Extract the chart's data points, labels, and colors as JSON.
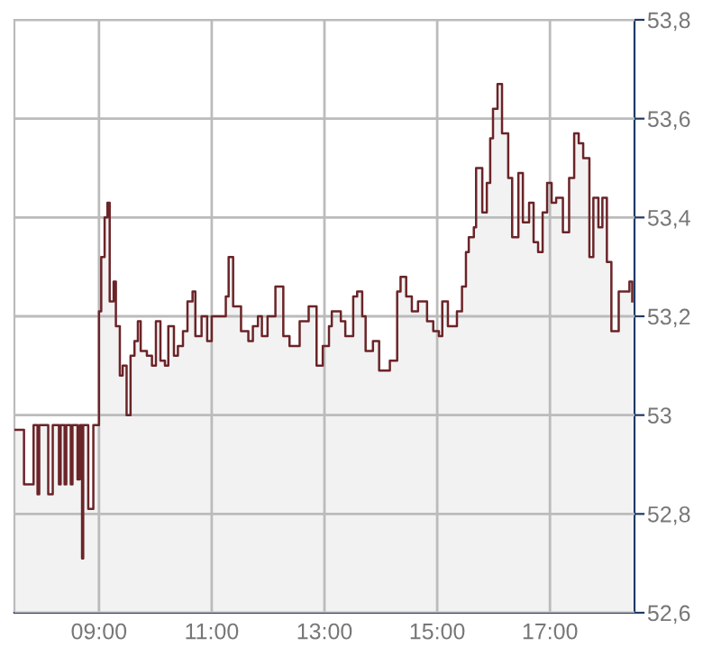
{
  "chart_data": {
    "type": "step",
    "x": [
      7.5,
      7.67,
      7.84,
      7.91,
      7.94,
      7.98,
      8.1,
      8.18,
      8.29,
      8.32,
      8.39,
      8.42,
      8.5,
      8.53,
      8.62,
      8.66,
      8.7,
      8.72,
      8.81,
      8.9,
      9.0,
      9.04,
      9.1,
      9.15,
      9.19,
      9.26,
      9.3,
      9.37,
      9.42,
      9.49,
      9.56,
      9.63,
      9.69,
      9.74,
      9.85,
      9.94,
      10.01,
      10.09,
      10.17,
      10.23,
      10.33,
      10.4,
      10.49,
      10.57,
      10.66,
      10.71,
      10.82,
      10.92,
      11.0,
      11.14,
      11.25,
      11.3,
      11.38,
      11.52,
      11.65,
      11.73,
      11.82,
      11.89,
      11.99,
      12.13,
      12.27,
      12.38,
      12.56,
      12.72,
      12.86,
      12.97,
      13.08,
      13.13,
      13.29,
      13.37,
      13.51,
      13.58,
      13.67,
      13.73,
      13.86,
      13.97,
      14.16,
      14.29,
      14.35,
      14.45,
      14.55,
      14.66,
      14.82,
      14.93,
      15.03,
      15.09,
      15.19,
      15.35,
      15.44,
      15.51,
      15.56,
      15.65,
      15.69,
      15.8,
      15.88,
      15.94,
      15.99,
      16.07,
      16.15,
      16.26,
      16.33,
      16.44,
      16.52,
      16.63,
      16.71,
      16.79,
      16.87,
      16.95,
      17.03,
      17.11,
      17.23,
      17.34,
      17.43,
      17.51,
      17.59,
      17.7,
      17.77,
      17.86,
      17.93,
      18.01,
      18.09,
      18.22,
      18.41,
      18.46
    ],
    "series": [
      {
        "type": "area",
        "color": "#f2f2f2",
        "values": [
          52.97,
          52.86,
          52.98,
          52.84,
          52.98,
          52.98,
          52.84,
          52.98,
          52.86,
          52.98,
          52.86,
          52.98,
          52.86,
          52.98,
          52.87,
          52.98,
          52.71,
          52.98,
          52.81,
          52.98,
          53.21,
          53.32,
          53.4,
          53.43,
          53.23,
          53.27,
          53.18,
          53.08,
          53.1,
          53.0,
          53.12,
          53.15,
          53.19,
          53.13,
          53.12,
          53.1,
          53.19,
          53.11,
          53.1,
          53.18,
          53.12,
          53.14,
          53.17,
          53.23,
          53.25,
          53.16,
          53.2,
          53.15,
          53.2,
          53.2,
          53.24,
          53.32,
          53.22,
          53.17,
          53.15,
          53.18,
          53.2,
          53.16,
          53.2,
          53.26,
          53.16,
          53.14,
          53.19,
          53.22,
          53.1,
          53.14,
          53.18,
          53.21,
          53.19,
          53.16,
          53.24,
          53.25,
          53.2,
          53.13,
          53.15,
          53.09,
          53.11,
          53.25,
          53.28,
          53.24,
          53.21,
          53.23,
          53.19,
          53.17,
          53.16,
          53.23,
          53.18,
          53.21,
          53.26,
          53.33,
          53.36,
          53.38,
          53.5,
          53.41,
          53.47,
          53.56,
          53.62,
          53.67,
          53.57,
          53.48,
          53.36,
          53.49,
          53.39,
          53.43,
          53.35,
          53.33,
          53.41,
          53.47,
          53.43,
          53.44,
          53.37,
          53.48,
          53.57,
          53.55,
          53.52,
          53.32,
          53.44,
          53.38,
          53.44,
          53.31,
          53.17,
          53.25,
          53.27,
          53.23
        ]
      },
      {
        "color": "#6b2428",
        "values": [
          52.97,
          52.86,
          52.98,
          52.84,
          52.98,
          52.98,
          52.84,
          52.98,
          52.86,
          52.98,
          52.86,
          52.98,
          52.86,
          52.98,
          52.87,
          52.98,
          52.71,
          52.98,
          52.81,
          52.98,
          53.21,
          53.32,
          53.4,
          53.43,
          53.23,
          53.27,
          53.18,
          53.08,
          53.1,
          53.0,
          53.12,
          53.15,
          53.19,
          53.13,
          53.12,
          53.1,
          53.19,
          53.11,
          53.1,
          53.18,
          53.12,
          53.14,
          53.17,
          53.23,
          53.25,
          53.16,
          53.2,
          53.15,
          53.2,
          53.2,
          53.24,
          53.32,
          53.22,
          53.17,
          53.15,
          53.18,
          53.2,
          53.16,
          53.2,
          53.26,
          53.16,
          53.14,
          53.19,
          53.22,
          53.1,
          53.14,
          53.18,
          53.21,
          53.19,
          53.16,
          53.24,
          53.25,
          53.2,
          53.13,
          53.15,
          53.09,
          53.11,
          53.25,
          53.28,
          53.24,
          53.21,
          53.23,
          53.19,
          53.17,
          53.16,
          53.23,
          53.18,
          53.21,
          53.26,
          53.33,
          53.36,
          53.38,
          53.5,
          53.41,
          53.47,
          53.56,
          53.62,
          53.67,
          53.57,
          53.48,
          53.36,
          53.49,
          53.39,
          53.43,
          53.35,
          53.33,
          53.41,
          53.47,
          53.43,
          53.44,
          53.37,
          53.48,
          53.57,
          53.55,
          53.52,
          53.32,
          53.44,
          53.38,
          53.44,
          53.31,
          53.17,
          53.25,
          53.27,
          53.23
        ]
      }
    ],
    "xlim": [
      7.5,
      18.5
    ],
    "xticks": [
      {
        "value": 9,
        "label": "09:00"
      },
      {
        "value": 11,
        "label": "11:00"
      },
      {
        "value": 13,
        "label": "13:00"
      },
      {
        "value": 15,
        "label": "15:00"
      },
      {
        "value": 17,
        "label": "17:00"
      }
    ],
    "ylim": [
      52.6,
      53.8
    ],
    "yticks": [
      {
        "value": 52.6,
        "label": "52,6"
      },
      {
        "value": 52.8,
        "label": "52,8"
      },
      {
        "value": 53,
        "label": "53"
      },
      {
        "value": 53.2,
        "label": "53,2"
      },
      {
        "value": 53.4,
        "label": "53,4"
      },
      {
        "value": 53.6,
        "label": "53,6"
      },
      {
        "value": 53.8,
        "label": "53,8"
      }
    ],
    "grid": true,
    "legend": false
  }
}
